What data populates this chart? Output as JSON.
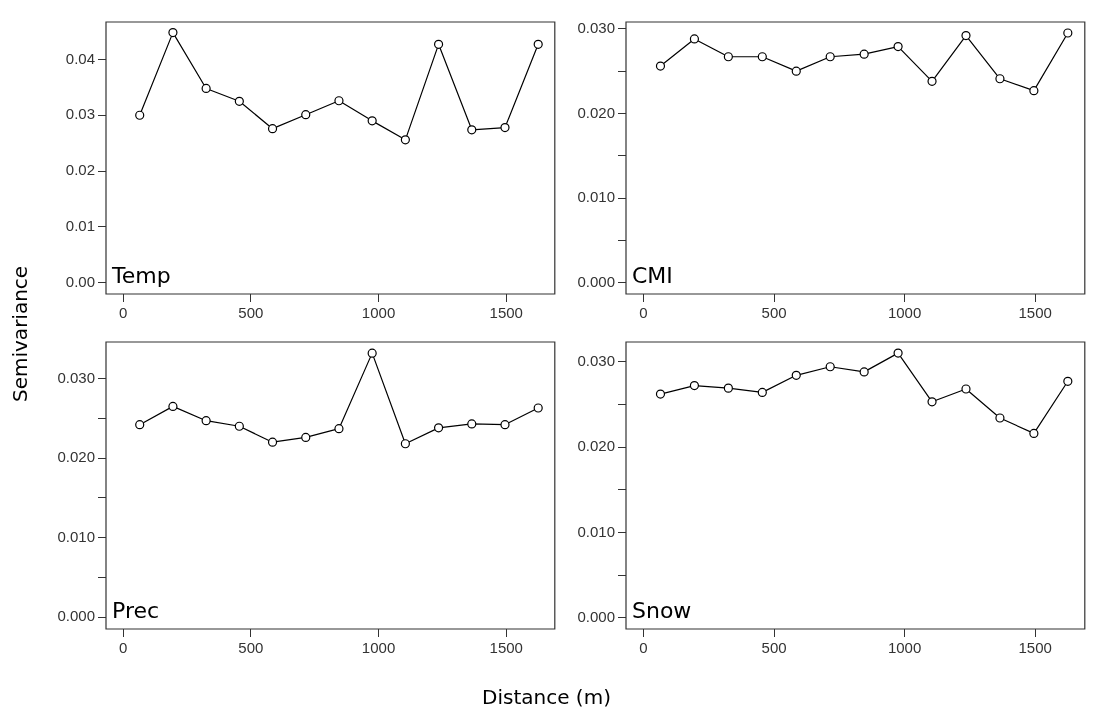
{
  "chart_data": [
    {
      "type": "line",
      "ylabel": "Semivariance",
      "annotations": [
        "Temp"
      ],
      "x": [
        65,
        195,
        325,
        455,
        585,
        715,
        845,
        975,
        1105,
        1235,
        1365,
        1495,
        1625
      ],
      "series": [
        {
          "color": "#000000",
          "values": [
            0.03,
            0.0448,
            0.0348,
            0.0325,
            0.0276,
            0.0301,
            0.0326,
            0.029,
            0.0256,
            0.0427,
            0.0274,
            0.0278,
            0.0427
          ]
        }
      ],
      "xlim": [
        -67,
        1690
      ],
      "xticks": [
        0,
        500,
        1000,
        1500
      ],
      "ylim": [
        -0.002,
        0.0467
      ],
      "yticks": [
        {
          "value": 0,
          "label": "0.00"
        },
        {
          "value": 0.01,
          "label": "0.01"
        },
        {
          "value": 0.02,
          "label": "0.02"
        },
        {
          "value": 0.03,
          "label": "0.03"
        },
        {
          "value": 0.04,
          "label": "0.04"
        }
      ],
      "marker": "circle",
      "grid": false
    },
    {
      "type": "line",
      "annotations": [
        "CMI"
      ],
      "x": [
        65,
        195,
        325,
        455,
        585,
        715,
        845,
        975,
        1105,
        1235,
        1365,
        1495,
        1625
      ],
      "series": [
        {
          "color": "#000000",
          "values": [
            0.0256,
            0.0288,
            0.0267,
            0.0267,
            0.025,
            0.0267,
            0.027,
            0.0279,
            0.0238,
            0.0292,
            0.0241,
            0.0227,
            0.0295
          ]
        }
      ],
      "xlim": [
        -67,
        1690
      ],
      "xticks": [
        0,
        500,
        1000,
        1500
      ],
      "ylim": [
        -0.0013,
        0.0308
      ],
      "yticks": [
        {
          "value": 0,
          "label": "0.000"
        },
        {
          "value": 0.005,
          "label": null
        },
        {
          "value": 0.01,
          "label": "0.010"
        },
        {
          "value": 0.015,
          "label": null
        },
        {
          "value": 0.02,
          "label": "0.020"
        },
        {
          "value": 0.025,
          "label": null
        },
        {
          "value": 0.03,
          "label": "0.030"
        }
      ],
      "marker": "circle",
      "grid": false
    },
    {
      "type": "line",
      "xlabel": "Distance (m)",
      "annotations": [
        "Prec"
      ],
      "x": [
        65,
        195,
        325,
        455,
        585,
        715,
        845,
        975,
        1105,
        1235,
        1365,
        1495,
        1625
      ],
      "series": [
        {
          "color": "#000000",
          "values": [
            0.0242,
            0.0265,
            0.0247,
            0.024,
            0.022,
            0.0226,
            0.0237,
            0.0332,
            0.0218,
            0.0238,
            0.0243,
            0.0242,
            0.0263
          ]
        }
      ],
      "xlim": [
        -67,
        1690
      ],
      "xticks": [
        0,
        500,
        1000,
        1500
      ],
      "ylim": [
        -0.0015,
        0.0346
      ],
      "yticks": [
        {
          "value": 0,
          "label": "0.000"
        },
        {
          "value": 0.005,
          "label": null
        },
        {
          "value": 0.01,
          "label": "0.010"
        },
        {
          "value": 0.015,
          "label": null
        },
        {
          "value": 0.02,
          "label": "0.020"
        },
        {
          "value": 0.025,
          "label": null
        },
        {
          "value": 0.03,
          "label": "0.030"
        }
      ],
      "marker": "circle",
      "grid": false
    },
    {
      "type": "line",
      "annotations": [
        "Snow"
      ],
      "x": [
        65,
        195,
        325,
        455,
        585,
        715,
        845,
        975,
        1105,
        1235,
        1365,
        1495,
        1625
      ],
      "series": [
        {
          "color": "#000000",
          "values": [
            0.0262,
            0.0272,
            0.0269,
            0.0264,
            0.0284,
            0.0294,
            0.0288,
            0.031,
            0.0253,
            0.0268,
            0.0234,
            0.0216,
            0.0277
          ]
        }
      ],
      "xlim": [
        -67,
        1690
      ],
      "xticks": [
        0,
        500,
        1000,
        1500
      ],
      "ylim": [
        -0.0013,
        0.0323
      ],
      "yticks": [
        {
          "value": 0,
          "label": "0.000"
        },
        {
          "value": 0.005,
          "label": null
        },
        {
          "value": 0.01,
          "label": "0.010"
        },
        {
          "value": 0.015,
          "label": null
        },
        {
          "value": 0.02,
          "label": "0.020"
        },
        {
          "value": 0.025,
          "label": null
        },
        {
          "value": 0.03,
          "label": "0.030"
        }
      ],
      "marker": "circle",
      "grid": false
    }
  ]
}
